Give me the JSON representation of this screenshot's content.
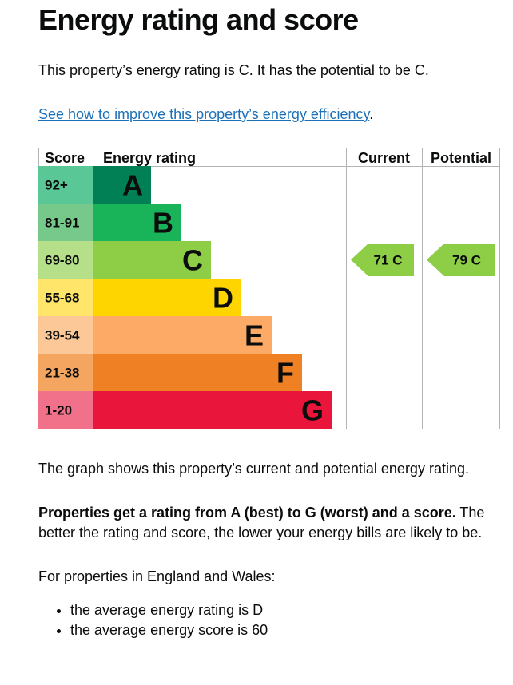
{
  "heading": "Energy rating and score",
  "intro": "This property’s energy rating is C. It has the potential to be C.",
  "link": {
    "text": "See how to improve this property’s energy efficiency",
    "suffix": "."
  },
  "chart_data": {
    "type": "bar",
    "headers": {
      "score": "Score",
      "rating": "Energy rating",
      "current": "Current",
      "potential": "Potential"
    },
    "bands": [
      {
        "letter": "A",
        "range": "92+",
        "color": "#008054",
        "tint": "#5ac796"
      },
      {
        "letter": "B",
        "range": "81-91",
        "color": "#19b459",
        "tint": "#77c98b"
      },
      {
        "letter": "C",
        "range": "69-80",
        "color": "#8dce46",
        "tint": "#b6df8a"
      },
      {
        "letter": "D",
        "range": "55-68",
        "color": "#ffd500",
        "tint": "#ffe66b"
      },
      {
        "letter": "E",
        "range": "39-54",
        "color": "#fcaa65",
        "tint": "#fdc898"
      },
      {
        "letter": "F",
        "range": "21-38",
        "color": "#ef8023",
        "tint": "#f4a660"
      },
      {
        "letter": "G",
        "range": "1-20",
        "color": "#e9153b",
        "tint": "#f07189"
      }
    ],
    "current": {
      "score": 71,
      "band": "C",
      "label": "71 C"
    },
    "potential": {
      "score": 79,
      "band": "C",
      "label": "79 C"
    }
  },
  "graph_note": "The graph shows this property’s current and potential energy rating.",
  "properties_bold": "Properties get a rating from A (best) to G (worst) and a score.",
  "properties_rest": " The better the rating and score, the lower your energy bills are likely to be.",
  "region_intro": "For properties in England and Wales:",
  "averages": [
    "the average energy rating is D",
    "the average energy score is 60"
  ]
}
